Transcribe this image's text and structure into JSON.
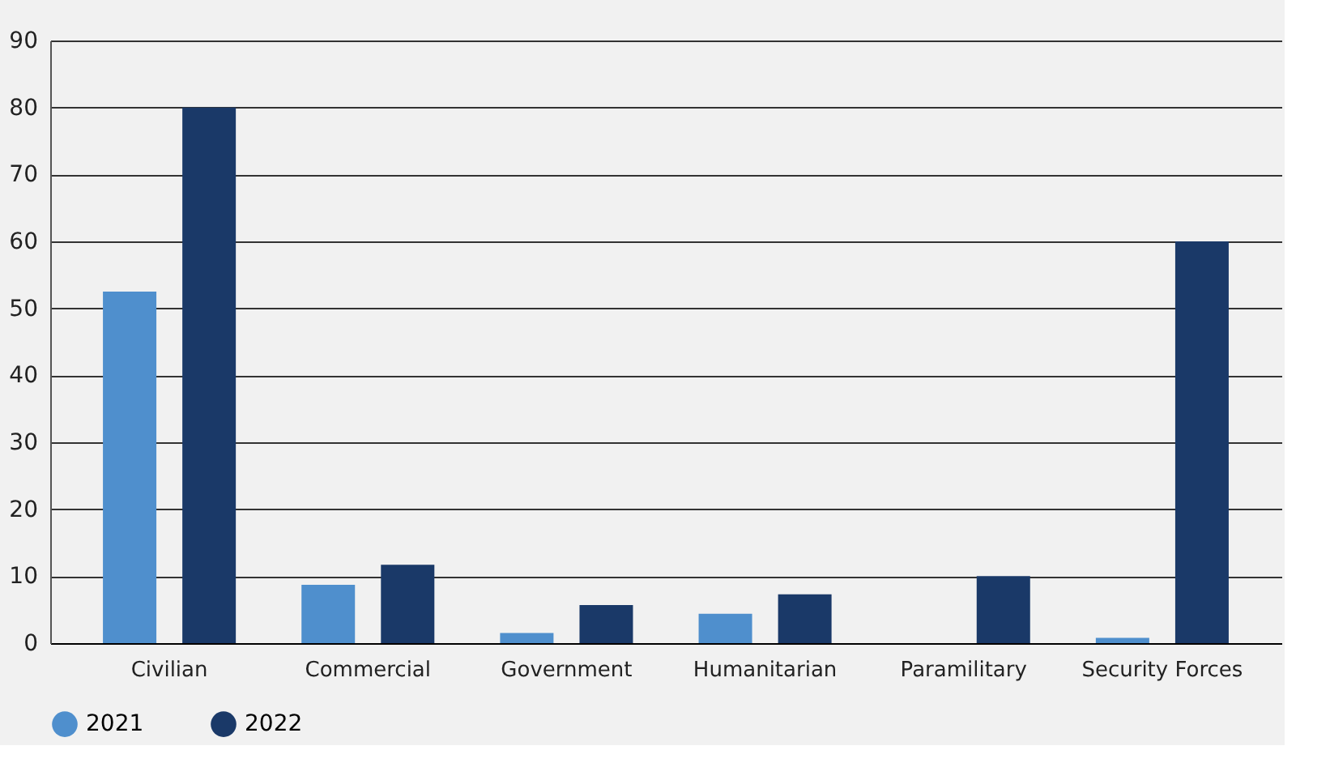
{
  "chart_data": {
    "type": "bar",
    "categories": [
      "Civilian",
      "Commercial",
      "Government",
      "Humanitarian",
      "Paramilitary",
      "Security Forces"
    ],
    "series": [
      {
        "name": "2021",
        "color": "#4f8fcd",
        "values": [
          52.5,
          8.7,
          1.5,
          4.4,
          0,
          0.8
        ]
      },
      {
        "name": "2022",
        "color": "#1a3968",
        "values": [
          80,
          11.7,
          5.7,
          7.3,
          10,
          60
        ]
      }
    ],
    "ylim": [
      0,
      90
    ],
    "yticks": [
      0,
      10,
      20,
      30,
      40,
      50,
      60,
      70,
      80,
      90
    ],
    "grid": "y",
    "legend": "bottom"
  }
}
